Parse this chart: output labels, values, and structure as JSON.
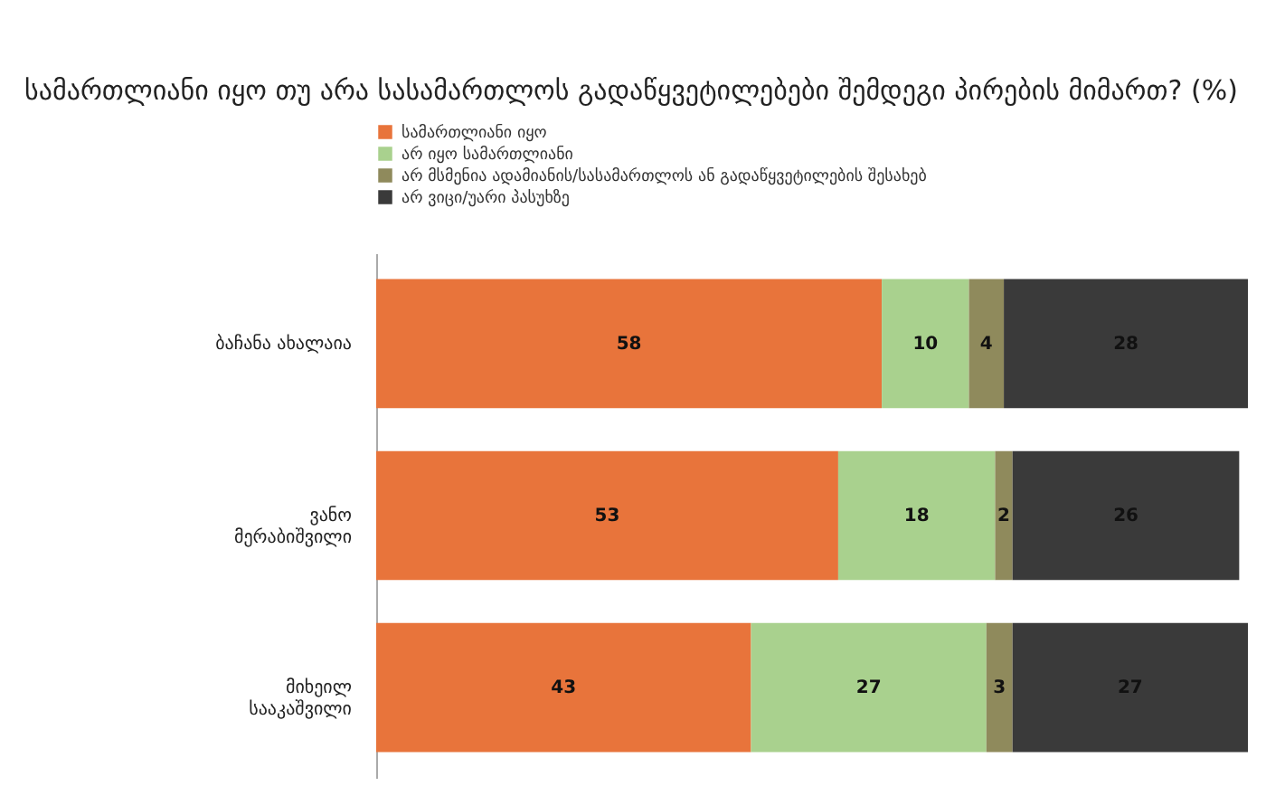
{
  "chart_data": {
    "type": "bar",
    "orientation": "horizontal",
    "stacked": true,
    "data_labels": true,
    "title": "სამართლიანი იყო თუ არა სასამართლოს\nგადაწყვეტილებები შემდეგი  პირების მიმართ? (%)",
    "categories": [
      "ბაჩანა ახალაია",
      "ვანო მერაბიშვილი",
      "მიხეილ სააკაშვილი"
    ],
    "legend": "top left",
    "series": [
      {
        "name": "სამართლიანი იყო",
        "color": "#e8743b",
        "values": [
          58,
          53,
          43
        ]
      },
      {
        "name": "არ იყო სამართლიანი",
        "color": "#a9d18e",
        "values": [
          10,
          18,
          27
        ]
      },
      {
        "name": "არ მსმენია ადამიანის/სასამართლოს ან გადაწყვეტილების შესახებ",
        "color": "#8f8a5c",
        "values": [
          4,
          2,
          3
        ]
      },
      {
        "name": "არ ვიცი/უარი პასუხზე",
        "color": "#3a3a3a",
        "values": [
          28,
          26,
          27
        ]
      }
    ]
  }
}
